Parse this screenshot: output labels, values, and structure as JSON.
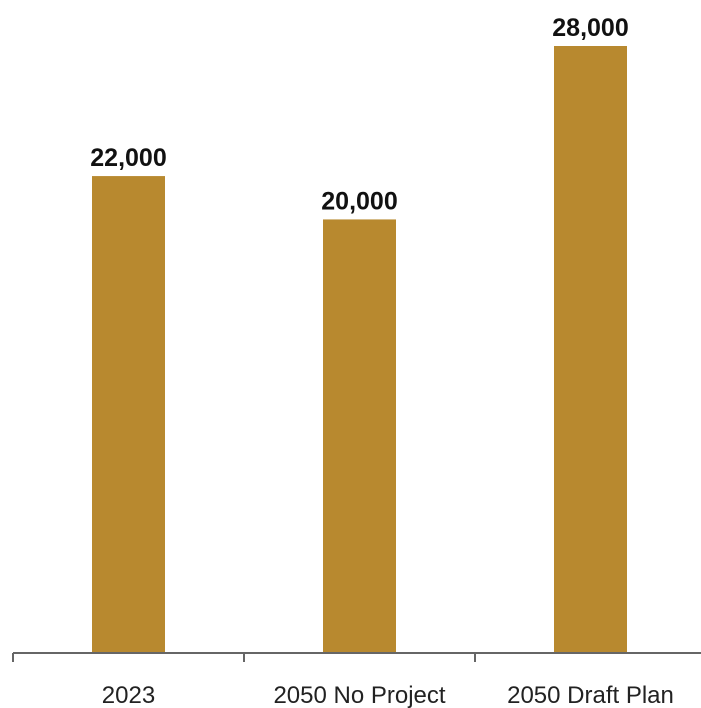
{
  "chart_data": {
    "type": "bar",
    "categories": [
      "2023",
      "2050 No Project",
      "2050 Draft Plan"
    ],
    "values": [
      22000,
      20000,
      28000
    ],
    "value_labels": [
      "22,000",
      "20,000",
      "28,000"
    ],
    "title": "",
    "xlabel": "",
    "ylabel": "",
    "ylim": [
      0,
      28000
    ],
    "grid": false,
    "legend": "none",
    "bar_color": "#B8892F"
  }
}
